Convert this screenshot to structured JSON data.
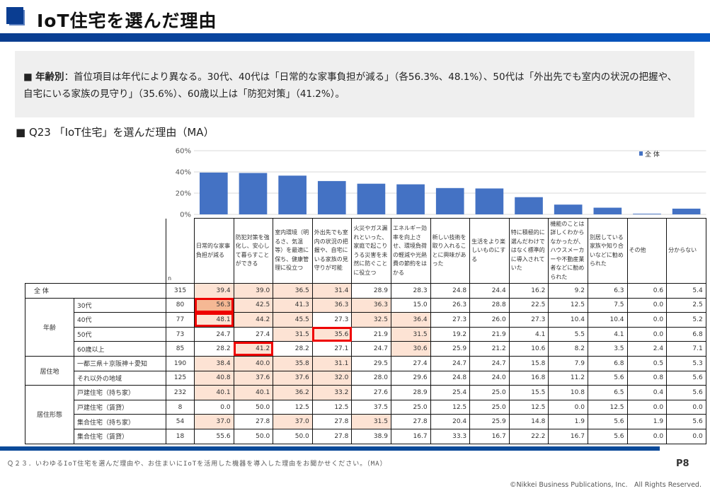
{
  "header": {
    "title": "IoT住宅を選んだ理由"
  },
  "summary": {
    "bullet": "■",
    "label": "年齢別",
    "text": "：首位項目は年代により異なる。30代、40代は「日常的な家事負担が減る」（各56.3%、48.1%）、50代は「外出先でも室内の状況の把握や、自宅にいる家族の見守り」（35.6%）、60歳以上は「防犯対策」（41.2%）。"
  },
  "question_title": "■  Q23 「IoT住宅」を選んだ理由（MA）",
  "chart_data": {
    "type": "bar",
    "title": "",
    "xlabel": "",
    "ylabel": "",
    "ylim": [
      0,
      60
    ],
    "yticks": [
      "0%",
      "20%",
      "40%",
      "60%"
    ],
    "ytick_values": [
      0,
      20,
      40,
      60
    ],
    "legend": "全 体",
    "legend_position": "top-right",
    "grid": true,
    "color": "#4472c4",
    "categories": [
      "日常的な家事負担が減る",
      "防犯対策を強化し、安心して暮らすことができる",
      "室内環境（明るさ、気温等）を最適に保ち、健康管理に役立つ",
      "外出先でも室内の状況の把握や、自宅にいる家族の見守りが可能",
      "火災やガス漏れといった、家庭で起こりうる災害を未然に防ぐことに役立つ",
      "エネルギー効率を向上させ、環境負荷の軽減や光熱費の節約をはかる",
      "新しい技術を取り入れることに興味があった",
      "生活をより楽しいものにする",
      "特に積極的に選んだわけではなく標準的に導入されていた",
      "機能のことは詳しくわからなかったが、ハウスメーカーや不動産業者などに勧められた",
      "別居している家族や知り合いなどに勧められた",
      "その他",
      "分からない"
    ],
    "values": [
      39.4,
      39.0,
      36.5,
      31.4,
      28.9,
      28.3,
      24.8,
      24.4,
      16.2,
      9.2,
      6.3,
      0.6,
      5.4
    ]
  },
  "table": {
    "n_label": "n",
    "rows": [
      {
        "group": "全 体",
        "label": "",
        "n": "315",
        "values": [
          "39.4",
          "39.0",
          "36.5",
          "31.4",
          "28.9",
          "28.3",
          "24.8",
          "24.4",
          "16.2",
          "9.2",
          "6.3",
          "0.6",
          "5.4"
        ]
      },
      {
        "group": "年齢",
        "label": "30代",
        "n": "80",
        "values": [
          "56.3",
          "42.5",
          "41.3",
          "36.3",
          "36.3",
          "15.0",
          "26.3",
          "28.8",
          "22.5",
          "12.5",
          "7.5",
          "0.0",
          "2.5"
        ]
      },
      {
        "group": "",
        "label": "40代",
        "n": "77",
        "values": [
          "48.1",
          "44.2",
          "45.5",
          "27.3",
          "32.5",
          "36.4",
          "27.3",
          "26.0",
          "27.3",
          "10.4",
          "10.4",
          "0.0",
          "5.2"
        ]
      },
      {
        "group": "",
        "label": "50代",
        "n": "73",
        "values": [
          "24.7",
          "27.4",
          "31.5",
          "35.6",
          "21.9",
          "31.5",
          "19.2",
          "21.9",
          "4.1",
          "5.5",
          "4.1",
          "0.0",
          "6.8"
        ]
      },
      {
        "group": "",
        "label": "60歳以上",
        "n": "85",
        "values": [
          "28.2",
          "41.2",
          "28.2",
          "27.1",
          "24.7",
          "30.6",
          "25.9",
          "21.2",
          "10.6",
          "8.2",
          "3.5",
          "2.4",
          "7.1"
        ]
      },
      {
        "group": "居住地",
        "label": "一都三県＋京阪神＋愛知",
        "n": "190",
        "values": [
          "38.4",
          "40.0",
          "35.8",
          "31.1",
          "29.5",
          "27.4",
          "24.7",
          "24.7",
          "15.8",
          "7.9",
          "6.8",
          "0.5",
          "5.3"
        ]
      },
      {
        "group": "",
        "label": "それ以外の地域",
        "n": "125",
        "values": [
          "40.8",
          "37.6",
          "37.6",
          "32.0",
          "28.0",
          "29.6",
          "24.8",
          "24.0",
          "16.8",
          "11.2",
          "5.6",
          "0.8",
          "5.6"
        ]
      },
      {
        "group": "居住形態",
        "label": "戸建住宅（持ち家）",
        "n": "232",
        "values": [
          "40.1",
          "40.1",
          "36.2",
          "33.2",
          "27.6",
          "28.9",
          "25.4",
          "25.0",
          "15.5",
          "10.8",
          "6.5",
          "0.4",
          "5.6"
        ]
      },
      {
        "group": "",
        "label": "戸建住宅（賃貸）",
        "n": "8",
        "values": [
          "0.0",
          "50.0",
          "12.5",
          "12.5",
          "37.5",
          "25.0",
          "12.5",
          "25.0",
          "12.5",
          "0.0",
          "12.5",
          "0.0",
          "0.0"
        ]
      },
      {
        "group": "",
        "label": "集合住宅（持ち家）",
        "n": "54",
        "values": [
          "37.0",
          "27.8",
          "37.0",
          "27.8",
          "31.5",
          "27.8",
          "20.4",
          "25.9",
          "14.8",
          "1.9",
          "5.6",
          "1.9",
          "5.6"
        ]
      },
      {
        "group": "",
        "label": "集合住宅（賃貸）",
        "n": "18",
        "values": [
          "55.6",
          "50.0",
          "50.0",
          "27.8",
          "38.9",
          "16.7",
          "33.3",
          "16.7",
          "22.2",
          "16.7",
          "5.6",
          "0.0",
          "0.0"
        ]
      }
    ],
    "highlighted_boxes": [
      [
        1,
        0
      ],
      [
        2,
        0
      ],
      [
        3,
        3
      ],
      [
        4,
        1
      ]
    ]
  },
  "footer": {
    "question": "Ｑ２３．いわゆるIoT住宅を選んだ理由や、お住まいにIoTを活用した機器を導入した理由をお聞かせください。（MA）",
    "page": "P8",
    "copyright": "©Nikkei Business Publications, Inc.　All Rights Reserved."
  }
}
